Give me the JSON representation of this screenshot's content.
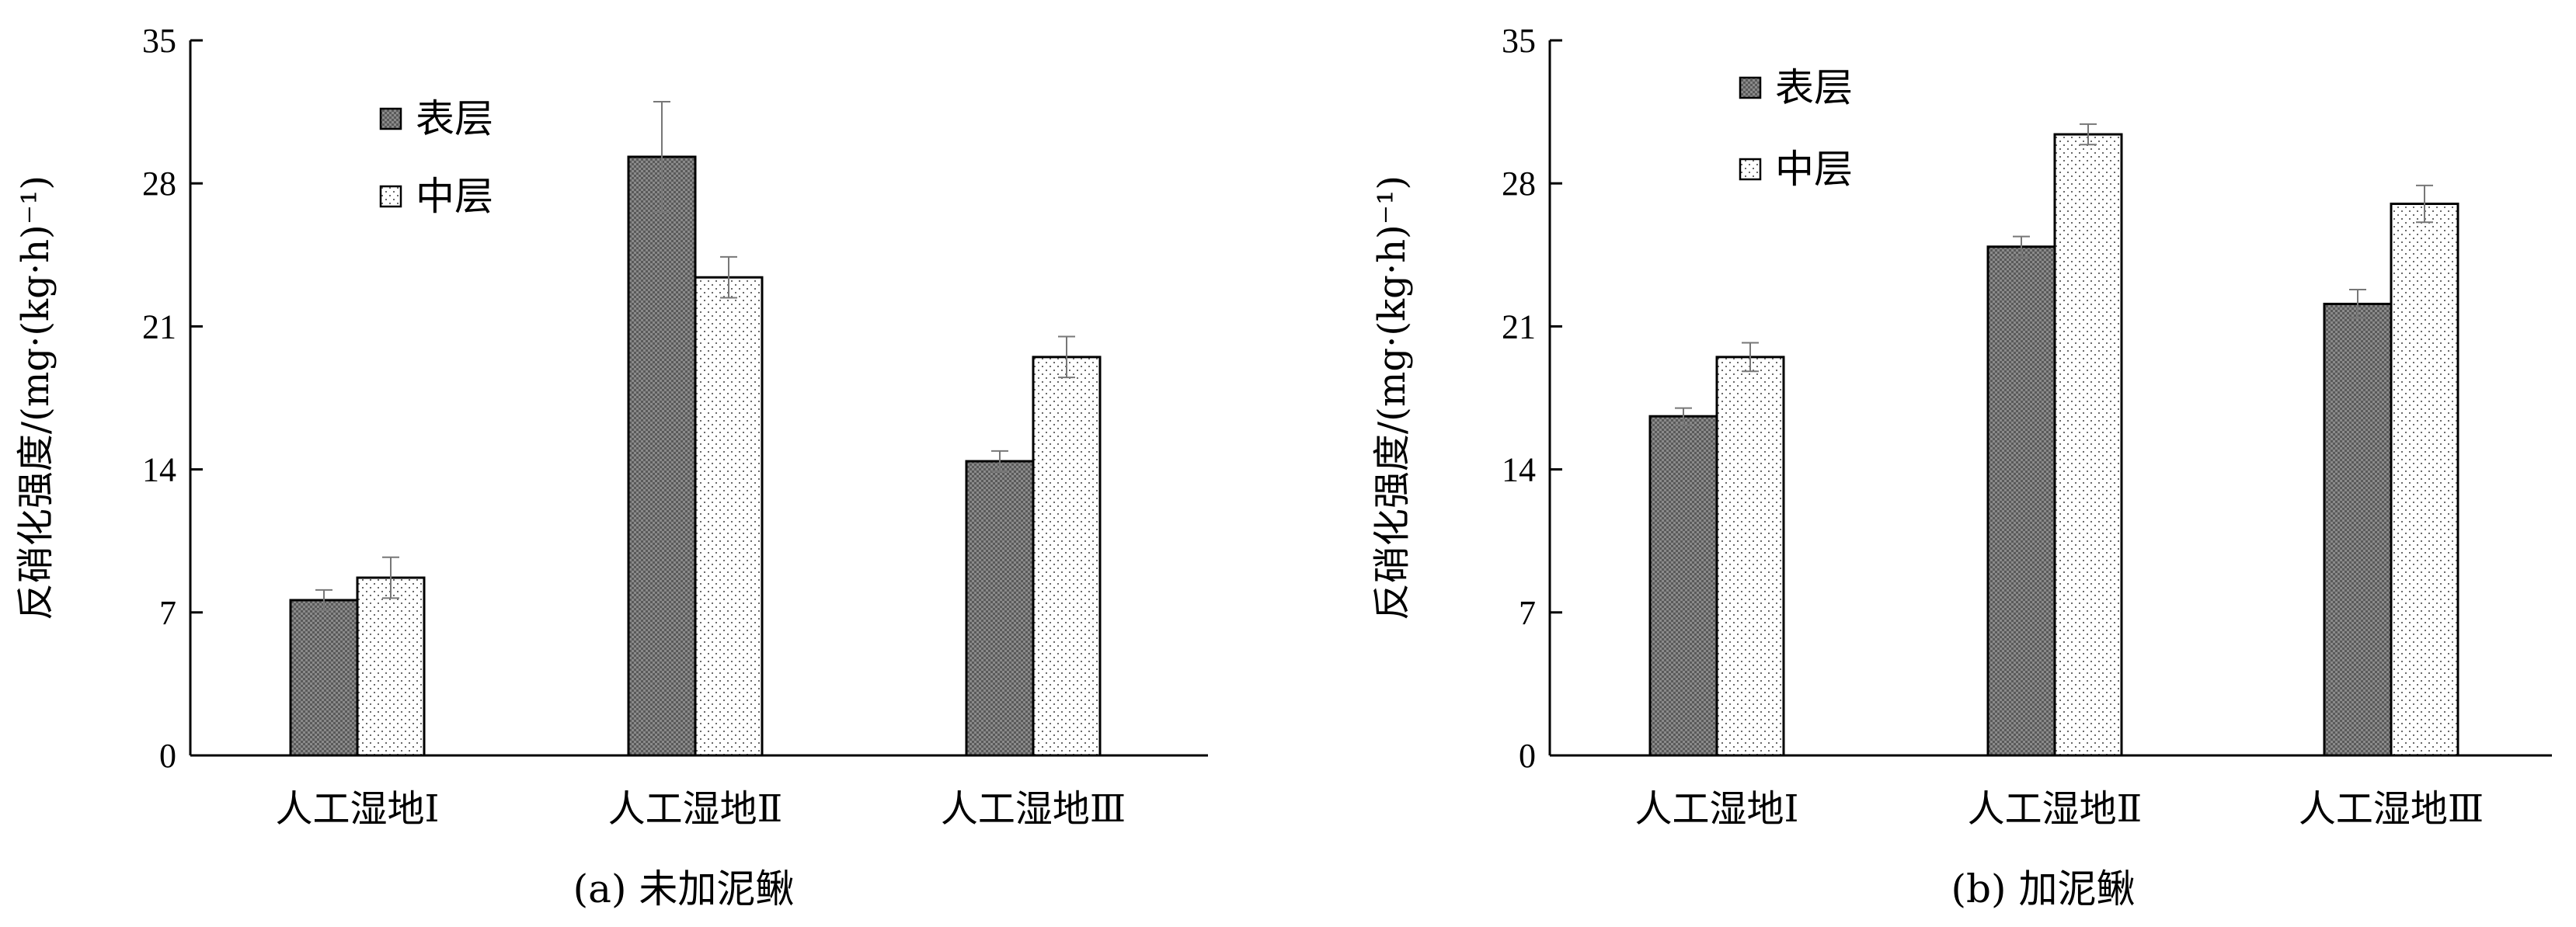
{
  "chart_data": [
    {
      "type": "bar",
      "caption": "(a) 未加泥鳅",
      "ylabel": "反硝化强度/(mg·(kg·h)⁻¹)",
      "ylim": [
        0,
        35
      ],
      "yticks": [
        "0",
        "7",
        "14",
        "21",
        "28",
        "35"
      ],
      "categories": [
        "人工湿地Ⅰ",
        "人工湿地Ⅱ",
        "人工湿地Ⅲ"
      ],
      "legend_position": "top-left",
      "series": [
        {
          "name": "表层",
          "pattern": "dark",
          "values": [
            7.6,
            29.3,
            14.4
          ],
          "errors": [
            0.5,
            2.7,
            0.5
          ]
        },
        {
          "name": "中层",
          "pattern": "light",
          "values": [
            8.7,
            23.4,
            19.5
          ],
          "errors": [
            1.0,
            1.0,
            1.0
          ]
        }
      ]
    },
    {
      "type": "bar",
      "caption": "(b) 加泥鳅",
      "ylabel": "反硝化强度/(mg·(kg·h)⁻¹)",
      "ylim": [
        0,
        35
      ],
      "yticks": [
        "0",
        "7",
        "14",
        "21",
        "28",
        "35"
      ],
      "categories": [
        "人工湿地Ⅰ",
        "人工湿地Ⅱ",
        "人工湿地Ⅲ"
      ],
      "legend_position": "top-left",
      "series": [
        {
          "name": "表层",
          "pattern": "dark",
          "values": [
            16.6,
            24.9,
            22.1
          ],
          "errors": [
            0.4,
            0.5,
            0.7
          ]
        },
        {
          "name": "中层",
          "pattern": "light",
          "values": [
            19.5,
            30.4,
            27.0
          ],
          "errors": [
            0.7,
            0.5,
            0.9
          ]
        }
      ]
    }
  ]
}
